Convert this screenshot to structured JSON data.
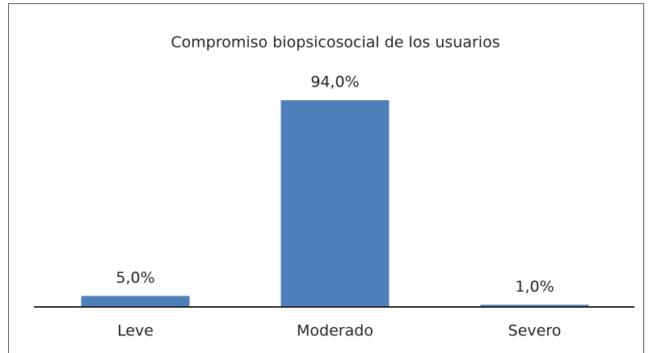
{
  "chart_data": {
    "type": "bar",
    "title": "Compromiso biopsicosocial de los usuarios",
    "categories": [
      "Leve",
      "Moderado",
      "Severo"
    ],
    "values": [
      5,
      94,
      1
    ],
    "value_labels": [
      "5,0%",
      "94,0%",
      "1,0%"
    ],
    "color": "#4f7fb8"
  }
}
